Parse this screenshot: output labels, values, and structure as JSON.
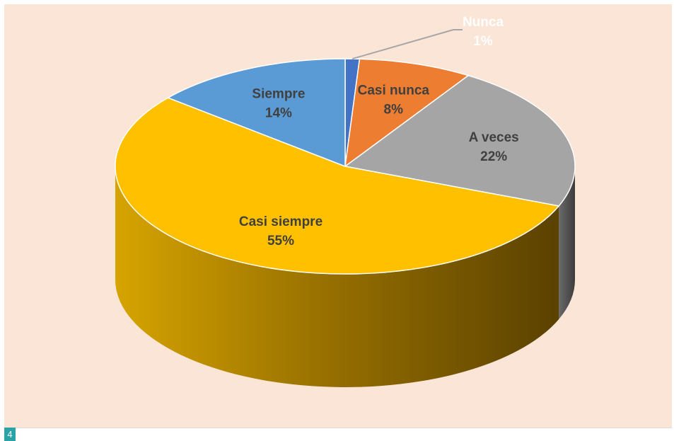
{
  "page_badge": "4",
  "chart_data": {
    "type": "pie",
    "style": "3d",
    "legend": "none",
    "slices": [
      {
        "label": "Nunca",
        "value": 1,
        "percent_label": "1%",
        "color": "#4472c4"
      },
      {
        "label": "Casi nunca",
        "value": 8,
        "percent_label": "8%",
        "color": "#ed7d31"
      },
      {
        "label": "A veces",
        "value": 22,
        "percent_label": "22%",
        "color": "#a5a5a5"
      },
      {
        "label": "Casi siempre",
        "value": 55,
        "percent_label": "55%",
        "color": "#ffc000"
      },
      {
        "label": "Siempre",
        "value": 14,
        "percent_label": "14%",
        "color": "#5b9bd5"
      }
    ],
    "label_colors": {
      "Nunca": "#ffffff",
      "default": "#404040"
    },
    "background": "#fae5d7"
  }
}
